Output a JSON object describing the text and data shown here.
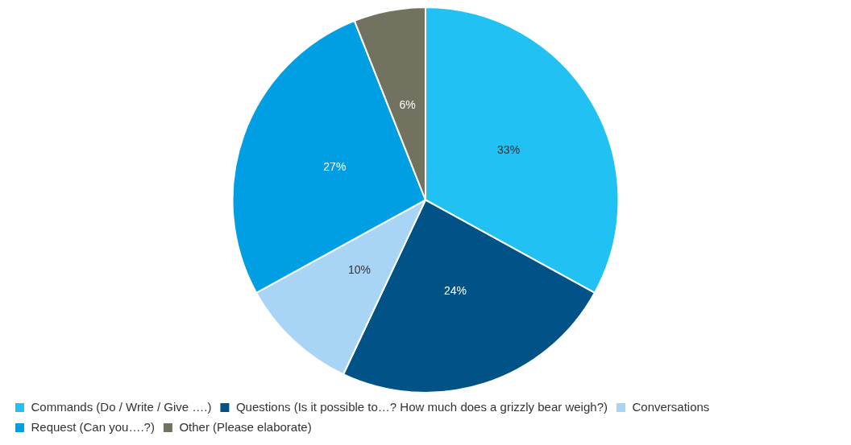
{
  "chart_data": {
    "type": "pie",
    "categories": [
      "Commands (Do / Write / Give ….)",
      "Questions (Is it possible to…? How much does a grizzly bear weigh?)",
      "Conversations",
      "Request (Can you….?)",
      "Other (Please elaborate)"
    ],
    "values": [
      33,
      24,
      10,
      27,
      6
    ],
    "colors": [
      "#22c1f3",
      "#005287",
      "#a8d4f5",
      "#009ee3",
      "#737260"
    ],
    "value_labels": [
      "33%",
      "24%",
      "10%",
      "27%",
      "6%"
    ],
    "legend": "bottom"
  }
}
